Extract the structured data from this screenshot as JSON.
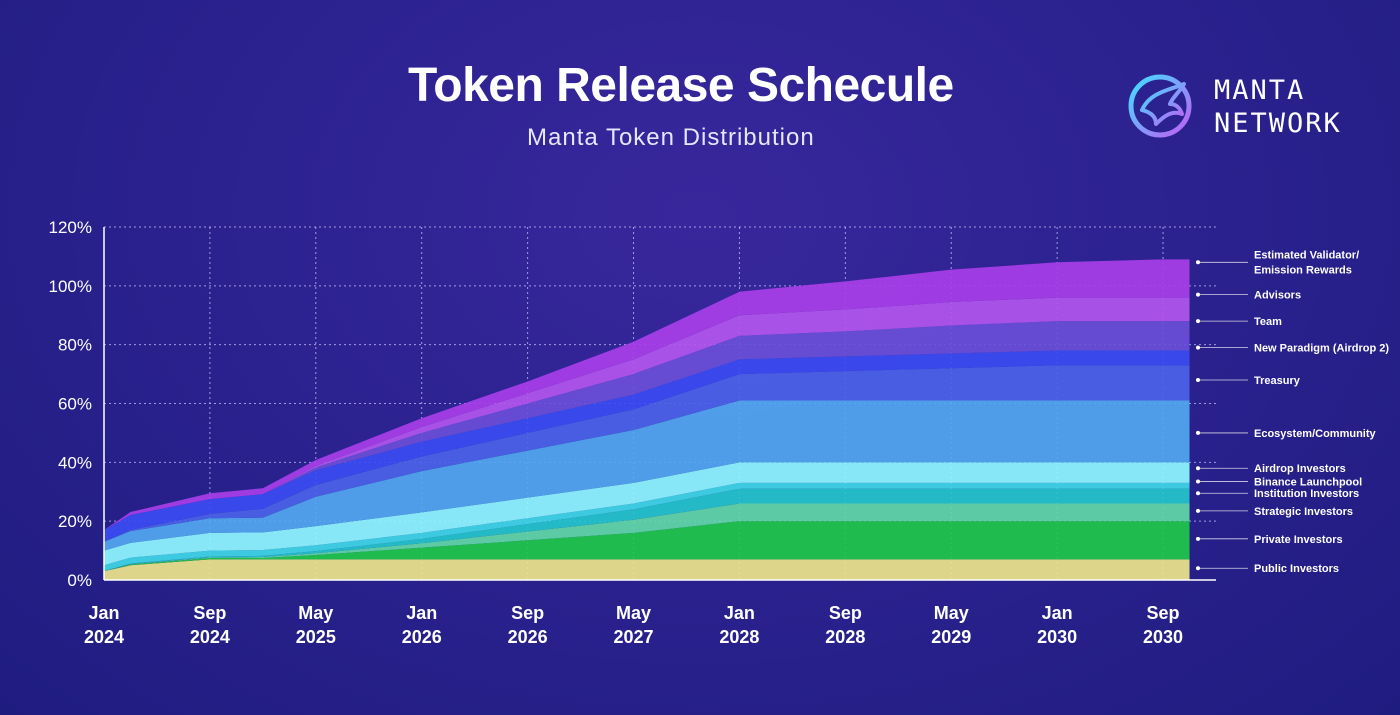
{
  "header": {
    "title": "Token Release Schecule",
    "subtitle": "Manta Token Distribution"
  },
  "logo": {
    "line1": "MANTA",
    "line2": "NETWORK",
    "icon": "manta-ray-icon"
  },
  "colors": {
    "background": "#2c2290",
    "grid": "#c9c4ff"
  },
  "chart_data": {
    "type": "area",
    "stacked": true,
    "title": "Token Release Schecule",
    "subtitle": "Manta Token Distribution",
    "x": [
      0,
      2,
      8,
      12,
      16,
      24,
      32,
      40,
      48,
      56,
      64,
      72,
      80,
      82
    ],
    "x_unit": "months since Jan 2024",
    "xlim": [
      0,
      84
    ],
    "ylim": [
      0,
      120
    ],
    "y_ticks": [
      "0%",
      "20%",
      "40%",
      "60%",
      "80%",
      "100%",
      "120%"
    ],
    "y_tick_values": [
      0,
      20,
      40,
      60,
      80,
      100,
      120
    ],
    "x_ticks": [
      {
        "value": 0,
        "line1": "Jan",
        "line2": "2024"
      },
      {
        "value": 8,
        "line1": "Sep",
        "line2": "2024"
      },
      {
        "value": 16,
        "line1": "May",
        "line2": "2025"
      },
      {
        "value": 24,
        "line1": "Jan",
        "line2": "2026"
      },
      {
        "value": 32,
        "line1": "Sep",
        "line2": "2026"
      },
      {
        "value": 40,
        "line1": "May",
        "line2": "2027"
      },
      {
        "value": 48,
        "line1": "Jan",
        "line2": "2028"
      },
      {
        "value": 56,
        "line1": "Sep",
        "line2": "2028"
      },
      {
        "value": 64,
        "line1": "May",
        "line2": "2029"
      },
      {
        "value": 72,
        "line1": "Jan",
        "line2": "2030"
      },
      {
        "value": 80,
        "line1": "Sep",
        "line2": "2030"
      }
    ],
    "legend_position": "right",
    "series": [
      {
        "name": "Public Investors",
        "color": "#ede58a",
        "values": [
          3,
          5,
          7,
          7,
          7,
          7,
          7,
          7,
          7,
          7,
          7,
          7,
          7,
          7
        ]
      },
      {
        "name": "Private Investors",
        "color": "#1fc94a",
        "values": [
          0,
          0.3,
          0.5,
          0.5,
          1.5,
          4,
          6.5,
          9,
          13,
          13,
          13,
          13,
          13,
          13
        ]
      },
      {
        "name": "Strategic Investors",
        "color": "#62d9a8",
        "values": [
          0,
          0.1,
          0.2,
          0.3,
          0.6,
          1.5,
          3,
          4.5,
          6,
          6,
          6,
          6,
          6,
          6
        ]
      },
      {
        "name": "Institution Investors",
        "color": "#23c7cc",
        "values": [
          0,
          0.2,
          0.3,
          0.4,
          0.7,
          1.5,
          2.5,
          3.5,
          5,
          5,
          5,
          5,
          5,
          5
        ]
      },
      {
        "name": "Binance Launchpool",
        "color": "#3fd8e6",
        "values": [
          2,
          2,
          2,
          2,
          2,
          2,
          2,
          2,
          2,
          2,
          2,
          2,
          2,
          2
        ]
      },
      {
        "name": "Airdrop Investors",
        "color": "#8ff8ff",
        "values": [
          5,
          5,
          6,
          6,
          6.5,
          7,
          7,
          7,
          7,
          7,
          7,
          7,
          7,
          7
        ]
      },
      {
        "name": "Ecosystem/Community",
        "color": "#52a8f0",
        "values": [
          3,
          4,
          5,
          5,
          10,
          14,
          16,
          18,
          21,
          21,
          21,
          21,
          21,
          21
        ]
      },
      {
        "name": "Treasury",
        "color": "#4b63e8",
        "values": [
          0,
          0.5,
          1.5,
          3,
          4,
          5,
          6,
          7,
          9,
          10,
          11,
          12,
          12,
          12
        ]
      },
      {
        "name": "New Paradigm (Airdrop 2)",
        "color": "#3b4cf2",
        "values": [
          4,
          5,
          5,
          5,
          5,
          5,
          5,
          5,
          5,
          5,
          5,
          5,
          5,
          5
        ]
      },
      {
        "name": "Team",
        "color": "#6a4fd8",
        "values": [
          0,
          0,
          0,
          0,
          1,
          3,
          5,
          7,
          8,
          8.5,
          9.5,
          10,
          10,
          10
        ]
      },
      {
        "name": "Advisors",
        "color": "#b356ee",
        "values": [
          0,
          0,
          0,
          0,
          0.5,
          2,
          3.5,
          5,
          7,
          7.5,
          8,
          8,
          8,
          8
        ]
      },
      {
        "name": "Estimated Validator/ Emission Rewards",
        "color": "#a83ee8",
        "values": [
          0,
          1,
          2,
          2,
          2,
          3,
          4,
          6,
          8,
          9.5,
          11,
          12,
          13,
          13
        ]
      }
    ],
    "legend": [
      {
        "line1": "Estimated Validator/",
        "line2": "Emission Rewards",
        "y": 108
      },
      {
        "line1": "Advisors",
        "line2": "",
        "y": 97
      },
      {
        "line1": "Team",
        "line2": "",
        "y": 88
      },
      {
        "line1": "New Paradigm (Airdrop 2)",
        "line2": "",
        "y": 79
      },
      {
        "line1": "Treasury",
        "line2": "",
        "y": 68
      },
      {
        "line1": "Ecosystem/Community",
        "line2": "",
        "y": 50
      },
      {
        "line1": "Airdrop Investors",
        "line2": "",
        "y": 38
      },
      {
        "line1": "Binance Launchpool",
        "line2": "",
        "y": 33.5
      },
      {
        "line1": "Institution Investors",
        "line2": "",
        "y": 29.5
      },
      {
        "line1": "Strategic Investors",
        "line2": "",
        "y": 23.5
      },
      {
        "line1": "Private Investors",
        "line2": "",
        "y": 14
      },
      {
        "line1": "Public Investors",
        "line2": "",
        "y": 4
      }
    ]
  }
}
